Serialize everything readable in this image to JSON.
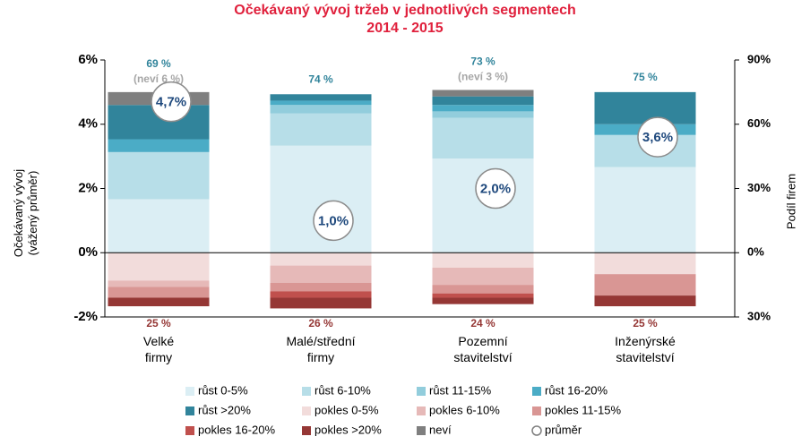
{
  "chart_data": {
    "type": "stacked_bar",
    "title": "Očekávaný vývoj tržeb v jednotlivých segmentech",
    "subtitle": "2014 - 2015",
    "y_label": "Očekávaný vývoj\n(vážený průměr)",
    "y2_label": "Podíl firem",
    "categories": [
      "Velké\nfirmy",
      "Malé/střední\nfirmy",
      "Pozemní\nstavitelství",
      "Inženýrské\nstavitelství"
    ],
    "ylim": [
      -2,
      6
    ],
    "yticks": [
      {
        "value": -2,
        "label": "-2%"
      },
      {
        "value": 0,
        "label": "0%"
      },
      {
        "value": 2,
        "label": "2%"
      },
      {
        "value": 4,
        "label": "4%"
      },
      {
        "value": 6,
        "label": "6%"
      }
    ],
    "y2lim": [
      -30,
      90
    ],
    "y2ticks": [
      {
        "value": -30,
        "label": "30%"
      },
      {
        "value": 0,
        "label": "0%"
      },
      {
        "value": 30,
        "label": "30%"
      },
      {
        "value": 60,
        "label": "60%"
      },
      {
        "value": 90,
        "label": "90%"
      }
    ],
    "series": [
      {
        "name": "růst 0-5%",
        "color": "#dbeef4",
        "axis": "y2",
        "values": [
          25,
          50,
          44,
          40
        ]
      },
      {
        "name": "růst 6-10%",
        "color": "#b7dee8",
        "axis": "y2",
        "values": [
          22,
          15,
          19,
          15
        ]
      },
      {
        "name": "růst 11-15%",
        "color": "#92cddc",
        "axis": "y2",
        "values": [
          0,
          4,
          3,
          0
        ]
      },
      {
        "name": "růst 16-20%",
        "color": "#4bacc6",
        "axis": "y2",
        "values": [
          6,
          2,
          3,
          5
        ]
      },
      {
        "name": "růst >20%",
        "color": "#31849b",
        "axis": "y2",
        "values": [
          16,
          3,
          4,
          15
        ]
      },
      {
        "name": "pokles 0-5%",
        "color": "#f2dcdb",
        "axis": "y2",
        "values": [
          -13,
          -6,
          -7,
          -10
        ]
      },
      {
        "name": "pokles 6-10%",
        "color": "#e6b9b8",
        "axis": "y2",
        "values": [
          -3,
          -8,
          -8,
          0
        ]
      },
      {
        "name": "pokles 11-15%",
        "color": "#d99694",
        "axis": "y2",
        "values": [
          -5,
          -4,
          -4,
          -10
        ]
      },
      {
        "name": "pokles 16-20%",
        "color": "#c0504d",
        "axis": "y2",
        "values": [
          0,
          -3,
          -2,
          0
        ]
      },
      {
        "name": "pokles >20%",
        "color": "#953735",
        "axis": "y2",
        "values": [
          -4,
          -5,
          -3,
          -5
        ]
      },
      {
        "name": "neví",
        "color": "#7f7f7f",
        "axis": "y2",
        "values": [
          6,
          0,
          3,
          0
        ],
        "value_labels": [
          "(neví 6 %)",
          null,
          "(neví 3 %)",
          null
        ]
      }
    ],
    "growth_totals": [
      69,
      74,
      73,
      75
    ],
    "growth_total_labels": [
      "69 %",
      "74 %",
      "73 %",
      "75 %"
    ],
    "decline_totals": [
      25,
      26,
      24,
      25
    ],
    "decline_total_labels": [
      "25 %",
      "26 %",
      "24 %",
      "25 %"
    ],
    "average": {
      "name": "průměr",
      "values": [
        4.7,
        1.0,
        2.0,
        3.6
      ],
      "value_labels": [
        "4,7%",
        "1,0%",
        "2,0%",
        "3,6%"
      ]
    }
  }
}
